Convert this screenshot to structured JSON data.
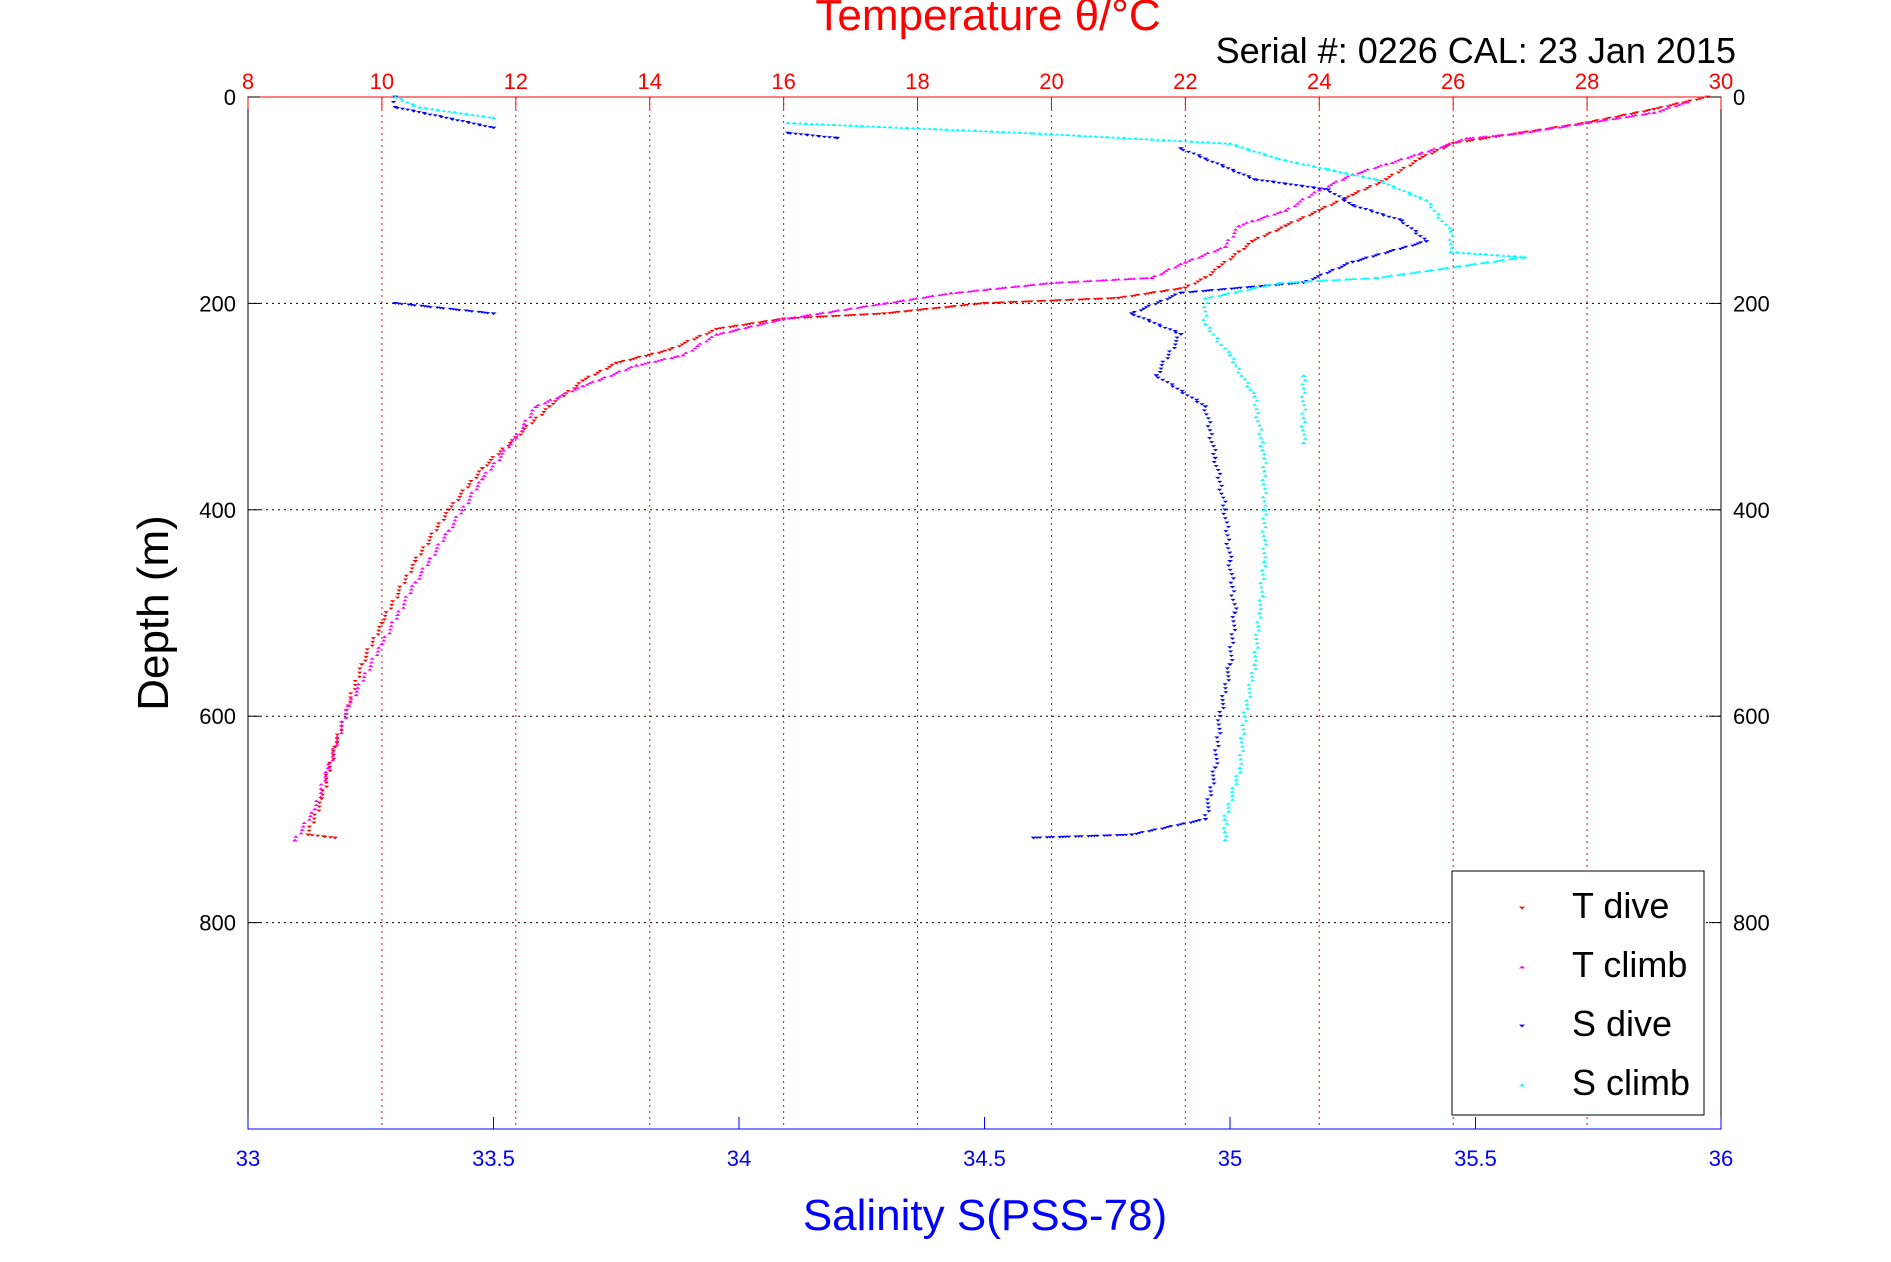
{
  "chart_data": {
    "type": "scatter",
    "title": "Temperature θ/°C",
    "subtitle": "Serial #: 0226  CAL: 23 Jan 2015",
    "xlabel": "Salinity S(PSS-78)",
    "ylabel": "Depth (m)",
    "temperature_axis": {
      "range": [
        8,
        30
      ],
      "ticks": [
        "8",
        "10",
        "12",
        "14",
        "16",
        "18",
        "20",
        "22",
        "24",
        "26",
        "28",
        "30"
      ],
      "color": "#ff0000"
    },
    "salinity_axis": {
      "range": [
        33,
        36
      ],
      "ticks": [
        "33",
        "33.5",
        "34",
        "34.5",
        "35",
        "35.5",
        "36"
      ],
      "color": "#0000ff"
    },
    "depth_axis": {
      "range": [
        0,
        1000
      ],
      "reversed": true,
      "ticks": [
        "0",
        "200",
        "400",
        "600",
        "800"
      ]
    },
    "grid": true,
    "legend_position": "bottom-right",
    "series": [
      {
        "name": "T dive",
        "axis": "temperature",
        "color": "#ff0000",
        "marker": "triangle-down",
        "points": [
          [
            29.8,
            0
          ],
          [
            29.0,
            12
          ],
          [
            28.0,
            25
          ],
          [
            27.0,
            35
          ],
          [
            26.0,
            45
          ],
          [
            25.5,
            60
          ],
          [
            25.0,
            80
          ],
          [
            24.5,
            95
          ],
          [
            24.0,
            110
          ],
          [
            23.5,
            125
          ],
          [
            23.0,
            140
          ],
          [
            22.8,
            150
          ],
          [
            22.5,
            165
          ],
          [
            22.3,
            175
          ],
          [
            22.0,
            185
          ],
          [
            21.0,
            195
          ],
          [
            19.0,
            200
          ],
          [
            17.5,
            210
          ],
          [
            16.0,
            215
          ],
          [
            15.0,
            225
          ],
          [
            14.3,
            245
          ],
          [
            13.5,
            258
          ],
          [
            13.0,
            275
          ],
          [
            12.5,
            300
          ],
          [
            12.0,
            330
          ],
          [
            11.5,
            360
          ],
          [
            11.0,
            400
          ],
          [
            10.5,
            450
          ],
          [
            10.0,
            510
          ],
          [
            9.7,
            550
          ],
          [
            9.5,
            590
          ],
          [
            9.3,
            630
          ],
          [
            9.1,
            680
          ],
          [
            8.9,
            715
          ],
          [
            9.3,
            718
          ]
        ]
      },
      {
        "name": "T climb",
        "axis": "temperature",
        "color": "#ff00ff",
        "marker": "triangle-up",
        "points": [
          [
            29.5,
            5
          ],
          [
            29.0,
            15
          ],
          [
            28.0,
            25
          ],
          [
            27.0,
            35
          ],
          [
            26.2,
            40
          ],
          [
            25.5,
            55
          ],
          [
            25.0,
            65
          ],
          [
            24.5,
            75
          ],
          [
            24.0,
            90
          ],
          [
            23.5,
            110
          ],
          [
            23.0,
            120
          ],
          [
            22.8,
            125
          ],
          [
            22.6,
            145
          ],
          [
            22.0,
            160
          ],
          [
            21.5,
            175
          ],
          [
            20.0,
            180
          ],
          [
            18.5,
            190
          ],
          [
            17.5,
            200
          ],
          [
            16.0,
            215
          ],
          [
            15.0,
            230
          ],
          [
            14.5,
            250
          ],
          [
            13.8,
            260
          ],
          [
            13.0,
            280
          ],
          [
            12.3,
            300
          ],
          [
            12.0,
            330
          ],
          [
            11.5,
            370
          ],
          [
            11.0,
            420
          ],
          [
            10.5,
            470
          ],
          [
            10.0,
            530
          ],
          [
            9.5,
            590
          ],
          [
            9.2,
            650
          ],
          [
            9.0,
            690
          ],
          [
            8.7,
            720
          ]
        ]
      },
      {
        "name": "S dive",
        "axis": "salinity",
        "color": "#0000ff",
        "marker": "triangle-down",
        "points": [
          [
            33.3,
            0
          ],
          [
            33.3,
            10
          ],
          [
            33.5,
            30
          ],
          [
            34.1,
            35
          ],
          [
            34.2,
            40
          ],
          [
            34.9,
            50
          ],
          [
            34.95,
            60
          ],
          [
            35.05,
            80
          ],
          [
            35.2,
            90
          ],
          [
            35.25,
            105
          ],
          [
            35.35,
            120
          ],
          [
            35.4,
            140
          ],
          [
            35.25,
            160
          ],
          [
            35.15,
            180
          ],
          [
            34.9,
            190
          ],
          [
            34.8,
            210
          ],
          [
            34.9,
            230
          ],
          [
            34.85,
            270
          ],
          [
            34.95,
            300
          ],
          [
            34.97,
            350
          ],
          [
            34.99,
            400
          ],
          [
            35.0,
            450
          ],
          [
            35.01,
            500
          ],
          [
            35.0,
            550
          ],
          [
            34.98,
            600
          ],
          [
            34.97,
            650
          ],
          [
            34.95,
            700
          ],
          [
            34.8,
            715
          ],
          [
            34.6,
            718
          ],
          [
            33.5,
            210
          ],
          [
            33.3,
            200
          ]
        ]
      },
      {
        "name": "S climb",
        "axis": "salinity",
        "color": "#00ffff",
        "marker": "triangle-up",
        "points": [
          [
            33.3,
            0
          ],
          [
            33.35,
            10
          ],
          [
            33.5,
            20
          ],
          [
            34.1,
            25
          ],
          [
            34.6,
            35
          ],
          [
            35.0,
            45
          ],
          [
            35.1,
            60
          ],
          [
            35.2,
            70
          ],
          [
            35.3,
            80
          ],
          [
            35.4,
            100
          ],
          [
            35.45,
            130
          ],
          [
            35.45,
            150
          ],
          [
            35.6,
            155
          ],
          [
            35.3,
            175
          ],
          [
            35.1,
            180
          ],
          [
            34.95,
            195
          ],
          [
            34.95,
            220
          ],
          [
            35.0,
            250
          ],
          [
            35.05,
            290
          ],
          [
            35.07,
            350
          ],
          [
            35.07,
            400
          ],
          [
            35.07,
            450
          ],
          [
            35.06,
            500
          ],
          [
            35.05,
            550
          ],
          [
            35.03,
            600
          ],
          [
            35.02,
            650
          ],
          [
            34.99,
            700
          ],
          [
            34.99,
            720
          ],
          [
            35.15,
            270
          ],
          [
            35.15,
            335
          ]
        ]
      }
    ]
  }
}
